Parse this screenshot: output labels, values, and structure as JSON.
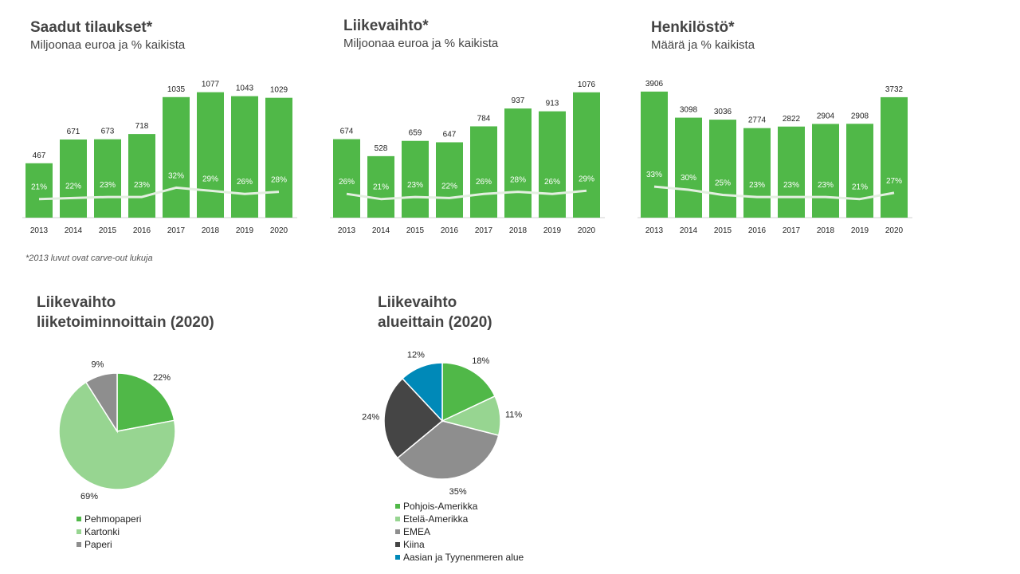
{
  "chart_data": [
    {
      "type": "bar",
      "title": "Saadut tilaukset*",
      "subtitle": "Miljoonaa euroa ja % kaikista",
      "categories": [
        "2013",
        "2014",
        "2015",
        "2016",
        "2017",
        "2018",
        "2019",
        "2020"
      ],
      "values": [
        467,
        671,
        673,
        718,
        1035,
        1077,
        1043,
        1029
      ],
      "share_pct": [
        21,
        22,
        23,
        23,
        32,
        29,
        26,
        28
      ],
      "share_labels": [
        "21%",
        "22%",
        "23%",
        "23%",
        "32%",
        "29%",
        "26%",
        "28%"
      ],
      "ylim": [
        0,
        1150
      ]
    },
    {
      "type": "bar",
      "title": "Liikevaihto*",
      "subtitle": "Miljoonaa euroa ja % kaikista",
      "categories": [
        "2013",
        "2014",
        "2015",
        "2016",
        "2017",
        "2018",
        "2019",
        "2020"
      ],
      "values": [
        674,
        528,
        659,
        647,
        784,
        937,
        913,
        1076
      ],
      "share_pct": [
        26,
        21,
        23,
        22,
        26,
        28,
        26,
        29
      ],
      "share_labels": [
        "26%",
        "21%",
        "23%",
        "22%",
        "26%",
        "28%",
        "26%",
        "29%"
      ],
      "ylim": [
        0,
        1150
      ]
    },
    {
      "type": "bar",
      "title": "Henkilöstö*",
      "subtitle": "Määrä ja % kaikista",
      "categories": [
        "2013",
        "2014",
        "2015",
        "2016",
        "2017",
        "2018",
        "2019",
        "2020"
      ],
      "values": [
        3906,
        3098,
        3036,
        2774,
        2822,
        2904,
        2908,
        3732
      ],
      "share_pct": [
        33,
        30,
        25,
        23,
        23,
        23,
        21,
        27
      ],
      "share_labels": [
        "33%",
        "30%",
        "25%",
        "23%",
        "23%",
        "23%",
        "21%",
        "27%"
      ],
      "ylim": [
        0,
        4150
      ]
    },
    {
      "type": "pie",
      "title_line1": "Liikevaihto",
      "title_line2": "liiketoiminnoittain  (2020)",
      "slices": [
        {
          "name": "Pehmopaperi",
          "value": 22,
          "label": "22%",
          "color": "#50b848"
        },
        {
          "name": "Kartonki",
          "value": 69,
          "label": "69%",
          "color": "#97d591"
        },
        {
          "name": "Paperi",
          "value": 9,
          "label": "9%",
          "color": "#8e8e8e"
        }
      ]
    },
    {
      "type": "pie",
      "title_line1": "Liikevaihto",
      "title_line2": "alueittain  (2020)",
      "slices": [
        {
          "name": "Pohjois-Amerikka",
          "value": 18,
          "label": "18%",
          "color": "#50b848"
        },
        {
          "name": "Etelä-Amerikka",
          "value": 11,
          "label": "11%",
          "color": "#97d591"
        },
        {
          "name": "EMEA",
          "value": 35,
          "label": "35%",
          "color": "#8e8e8e"
        },
        {
          "name": "Kiina",
          "value": 24,
          "label": "24%",
          "color": "#454545"
        },
        {
          "name": "Aasian ja Tyynenmeren alue",
          "value": 12,
          "label": "12%",
          "color": "#0089b8"
        }
      ]
    }
  ],
  "footnote": "*2013 luvut ovat carve-out lukuja",
  "colors": {
    "bar": "#50b848",
    "trend_line": "#e3efe0",
    "axis": "#d0d0d0"
  }
}
